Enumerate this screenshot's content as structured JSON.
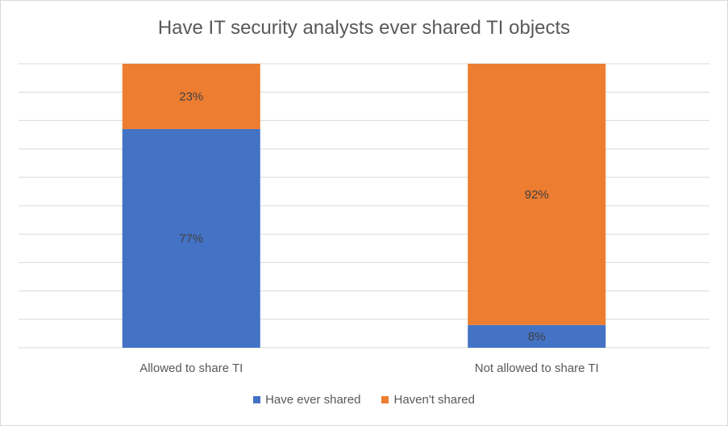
{
  "chart_data": {
    "type": "bar",
    "stacked": true,
    "title": "Have IT security analysts ever shared TI objects",
    "categories": [
      "Allowed to share TI",
      "Not allowed to share TI"
    ],
    "series": [
      {
        "name": "Have ever shared",
        "values": [
          77,
          8
        ],
        "labels": [
          "77%",
          "8%"
        ],
        "color": "#4472c4"
      },
      {
        "name": "Haven't shared",
        "values": [
          23,
          92
        ],
        "labels": [
          "23%",
          "92%"
        ],
        "color": "#ed7d31"
      }
    ],
    "ylim": [
      0,
      100
    ],
    "grid": true,
    "legend_position": "bottom"
  }
}
